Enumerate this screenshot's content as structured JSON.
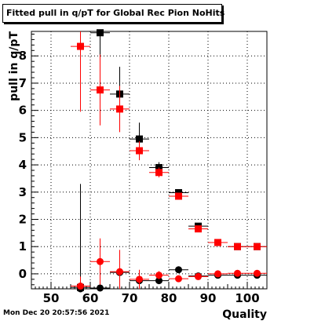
{
  "chart_data": {
    "type": "scatter",
    "title": "Fitted pull in q/pT for Global Rec Pion NoHits",
    "xlabel": "Quality",
    "ylabel": "pull in q/pT",
    "xlim": [
      45,
      105
    ],
    "ylim": [
      -0.55,
      8.9
    ],
    "x_ticks": [
      50,
      60,
      70,
      80,
      90,
      100
    ],
    "y_ticks": [
      0,
      1,
      2,
      3,
      4,
      5,
      6,
      7,
      8
    ],
    "grid": true,
    "legend": "none",
    "series": [
      {
        "color": "#000000",
        "marker": "square",
        "points": [
          {
            "x": 57.5,
            "y": -0.5,
            "err": 0.1
          },
          {
            "x": 62.5,
            "y": 8.85,
            "err": 0.9
          },
          {
            "x": 67.5,
            "y": 6.6,
            "err": 1.0
          },
          {
            "x": 72.5,
            "y": 4.95,
            "err": 0.6
          },
          {
            "x": 77.5,
            "y": 3.9,
            "err": 0.2
          },
          {
            "x": 82.5,
            "y": 2.98,
            "err": 0.1
          },
          {
            "x": 87.5,
            "y": 1.75,
            "err": 0.07
          },
          {
            "x": 92.5,
            "y": 1.15,
            "err": 0.04
          },
          {
            "x": 97.5,
            "y": 1.0,
            "err": 0.03
          },
          {
            "x": 102.5,
            "y": 1.0,
            "err": 0.03
          }
        ]
      },
      {
        "color": "#ff0000",
        "marker": "square",
        "points": [
          {
            "x": 57.5,
            "y": 8.35,
            "err": 2.4
          },
          {
            "x": 62.5,
            "y": 6.75,
            "err": 1.3
          },
          {
            "x": 67.5,
            "y": 6.05,
            "err": 0.85
          },
          {
            "x": 72.5,
            "y": 4.52,
            "err": 0.35
          },
          {
            "x": 77.5,
            "y": 3.72,
            "err": 0.18
          },
          {
            "x": 82.5,
            "y": 2.85,
            "err": 0.1
          },
          {
            "x": 87.5,
            "y": 1.65,
            "err": 0.06
          },
          {
            "x": 92.5,
            "y": 1.15,
            "err": 0.04
          },
          {
            "x": 97.5,
            "y": 1.0,
            "err": 0.03
          },
          {
            "x": 102.5,
            "y": 1.0,
            "err": 0.03
          }
        ]
      },
      {
        "color": "#000000",
        "marker": "circle",
        "points": [
          {
            "x": 57.5,
            "y": -0.55,
            "err": 3.85
          },
          {
            "x": 62.5,
            "y": -0.52,
            "err": 0.3
          },
          {
            "x": 67.5,
            "y": 0.05,
            "err": 0.15
          },
          {
            "x": 72.5,
            "y": -0.25,
            "err": 0.15
          },
          {
            "x": 77.5,
            "y": -0.25,
            "err": 0.12
          },
          {
            "x": 82.5,
            "y": 0.15,
            "err": 0.08
          },
          {
            "x": 87.5,
            "y": -0.08,
            "err": 0.04
          },
          {
            "x": 92.5,
            "y": -0.05,
            "err": 0.03
          },
          {
            "x": 97.5,
            "y": -0.05,
            "err": 0.02
          },
          {
            "x": 102.5,
            "y": -0.05,
            "err": 0.02
          }
        ]
      },
      {
        "color": "#ff0000",
        "marker": "circle",
        "points": [
          {
            "x": 57.5,
            "y": -0.45,
            "err": 0.35
          },
          {
            "x": 62.5,
            "y": 0.45,
            "err": 0.85
          },
          {
            "x": 67.5,
            "y": 0.08,
            "err": 0.8
          },
          {
            "x": 72.5,
            "y": -0.2,
            "err": 0.35
          },
          {
            "x": 77.5,
            "y": -0.05,
            "err": 0.15
          },
          {
            "x": 82.5,
            "y": -0.18,
            "err": 0.08
          },
          {
            "x": 87.5,
            "y": -0.1,
            "err": 0.05
          },
          {
            "x": 92.5,
            "y": 0.0,
            "err": 0.03
          },
          {
            "x": 97.5,
            "y": 0.02,
            "err": 0.02
          },
          {
            "x": 102.5,
            "y": 0.02,
            "err": 0.02
          }
        ]
      }
    ]
  },
  "footer": {
    "timestamp": "Mon Dec 20 20:57:56 2021"
  }
}
